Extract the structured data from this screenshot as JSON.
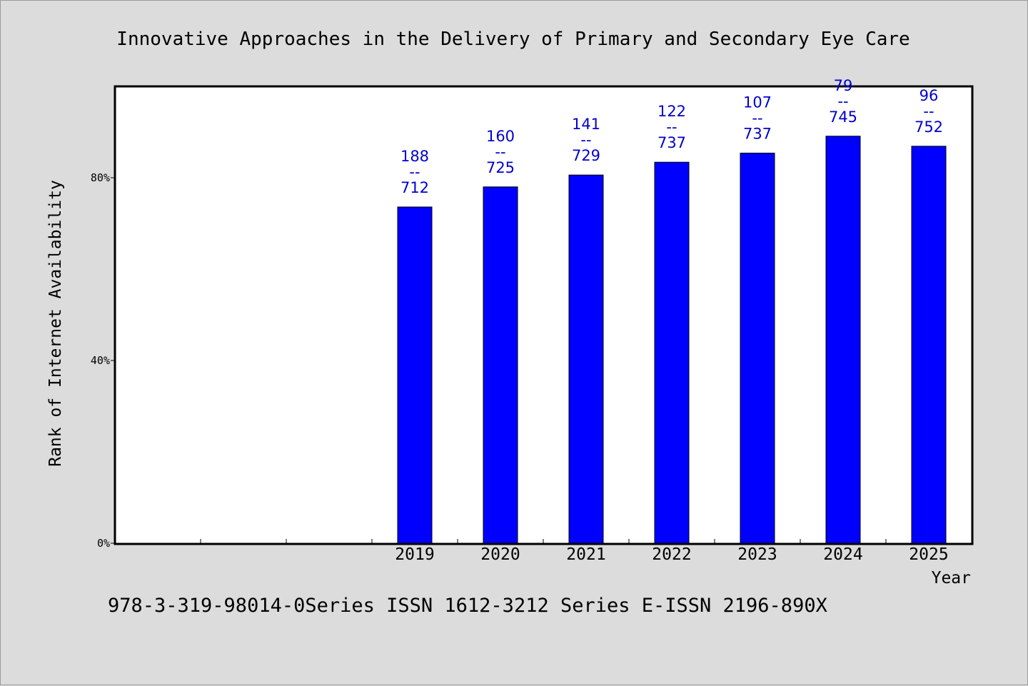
{
  "chart_data": {
    "type": "bar",
    "title": "Innovative Approaches in the Delivery of Primary and Secondary Eye Care",
    "xlabel": "Year",
    "ylabel": "Rank of Internet Availability",
    "categories": [
      "",
      "",
      "",
      "2019",
      "2020",
      "2021",
      "2022",
      "2023",
      "2024",
      "2025"
    ],
    "values": [
      null,
      null,
      null,
      73.6,
      78.0,
      80.6,
      83.4,
      85.4,
      89.1,
      86.9
    ],
    "data_labels": [
      null,
      null,
      null,
      [
        "188",
        "--",
        "712"
      ],
      [
        "160",
        "--",
        "725"
      ],
      [
        "141",
        "--",
        "729"
      ],
      [
        "122",
        "--",
        "737"
      ],
      [
        "107",
        "--",
        "737"
      ],
      [
        "79",
        "--",
        "745"
      ],
      [
        "96",
        "--",
        "752"
      ]
    ],
    "yticks": [
      0,
      40,
      80
    ],
    "ytick_labels": [
      "0%",
      "40%",
      "80%"
    ],
    "ylim": [
      0,
      100
    ],
    "grid": false,
    "legend": "none",
    "bar_color": "#0000ff",
    "label_color": "#0000cc"
  },
  "footer": {
    "text": "978-3-319-98014-0Series ISSN 1612-3212 Series E-ISSN 2196-890X"
  }
}
